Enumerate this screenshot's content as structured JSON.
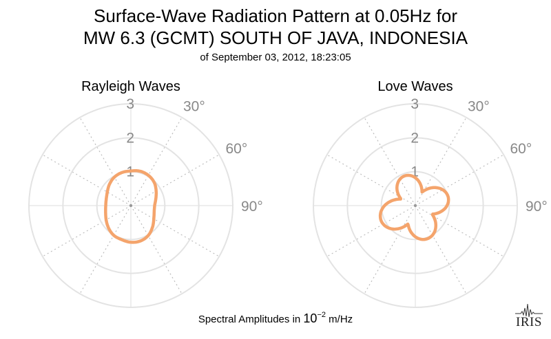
{
  "title": {
    "line1": "Surface-Wave Radiation Pattern at 0.05Hz for",
    "line2": "MW 6.3 (GCMT) SOUTH OF JAVA, INDONESIA",
    "subtitle": "of September 03, 2012, 18:23:05"
  },
  "footer": {
    "prefix": "Spectral Amplitudes in ",
    "base": "10",
    "exponent": "−2",
    "suffix": " m/Hz"
  },
  "logo": {
    "text": "IRIS"
  },
  "colors": {
    "pattern": "#f4a46c",
    "grid": "#e3e3e3",
    "grid_dotted": "#bcbcbc",
    "tick_label": "#888888"
  },
  "chart_data": [
    {
      "type": "polar",
      "title": "Rayleigh Waves",
      "r_range": [
        0,
        3
      ],
      "r_ticks": [
        1,
        2,
        3
      ],
      "r_tick_labels": [
        "1",
        "2",
        "3"
      ],
      "angle_tick_labels": [
        "30°",
        "60°",
        "90°"
      ],
      "angle_zero": "north",
      "angle_direction": "clockwise",
      "grid": true,
      "series": [
        {
          "azimuth_deg": [
            0,
            15,
            30,
            45,
            60,
            75,
            90,
            105,
            120,
            135,
            150,
            165,
            180,
            195,
            210,
            225,
            240,
            255,
            270,
            285,
            300,
            315,
            330,
            345
          ],
          "amplitude": [
            1.02,
            1.05,
            1.03,
            0.97,
            0.86,
            0.76,
            0.7,
            0.71,
            0.78,
            0.9,
            1.02,
            1.08,
            1.08,
            1.04,
            1.01,
            0.93,
            0.84,
            0.77,
            0.74,
            0.75,
            0.8,
            0.89,
            0.97,
            1.01
          ]
        }
      ]
    },
    {
      "type": "polar",
      "title": "Love Waves",
      "r_range": [
        0,
        3
      ],
      "r_ticks": [
        1,
        2,
        3
      ],
      "r_tick_labels": [
        "1",
        "2",
        "3"
      ],
      "angle_tick_labels": [
        "30°",
        "60°",
        "90°"
      ],
      "angle_zero": "north",
      "angle_direction": "clockwise",
      "grid": true,
      "series": [
        {
          "lobe_azimuths_deg": [
            -20,
            75,
            160,
            245
          ],
          "lobe_peaks": [
            0.93,
            1.0,
            1.04,
            1.1
          ]
        }
      ]
    }
  ]
}
